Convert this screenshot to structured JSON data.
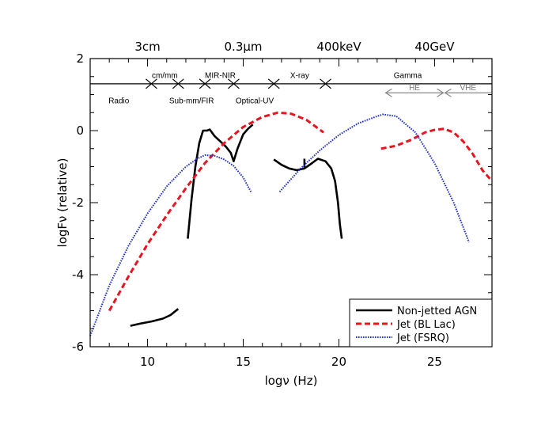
{
  "chart_data": {
    "type": "line",
    "xlabel": "logν (Hz)",
    "ylabel": "logFν (relative)",
    "xlim": [
      7,
      28
    ],
    "ylim": [
      -6,
      2
    ],
    "x_ticks": [
      10,
      15,
      20,
      25
    ],
    "y_ticks": [
      -6,
      -4,
      -2,
      0,
      2
    ],
    "top_axis_ticks": [
      {
        "value": 10,
        "label": "3cm"
      },
      {
        "value": 15,
        "label": "0.3μm"
      },
      {
        "value": 20,
        "label": "400keV"
      },
      {
        "value": 25,
        "label": "40GeV"
      }
    ],
    "band_line_y": 1.3,
    "band_boundaries": [
      10.2,
      11.6,
      13.0,
      14.5,
      16.6,
      19.3
    ],
    "band_labels": [
      {
        "text": "Radio",
        "x": 8.5,
        "y": 0.85
      },
      {
        "text": "cm/mm",
        "x": 10.9,
        "y": 1.55
      },
      {
        "text": "Sub-mm/FIR",
        "x": 12.3,
        "y": 0.85
      },
      {
        "text": "MIR-NIR",
        "x": 13.8,
        "y": 1.55
      },
      {
        "text": "Optical-UV",
        "x": 15.6,
        "y": 0.85
      },
      {
        "text": "X-ray",
        "x": 17.95,
        "y": 1.55
      },
      {
        "text": "Gamma",
        "x": 23.6,
        "y": 1.55
      }
    ],
    "sub_bands": [
      {
        "text": "HE",
        "from": 22.4,
        "to": 25.5,
        "y": 1.05
      },
      {
        "text": "VHE",
        "from": 25.5,
        "to": 28.0,
        "y": 1.05
      }
    ],
    "series": [
      {
        "name": "Non-jetted AGN",
        "color": "#000000",
        "style": "solid",
        "segments": [
          {
            "x": [
              9.1,
              9.6,
              10.2,
              10.8,
              11.2,
              11.6
            ],
            "y": [
              -5.42,
              -5.36,
              -5.3,
              -5.22,
              -5.12,
              -4.95
            ]
          },
          {
            "x": [
              12.1,
              12.3,
              12.5,
              12.7,
              12.9,
              13.1,
              13.25,
              13.5,
              13.8,
              14.1,
              14.35,
              14.5,
              14.7,
              15.0,
              15.25,
              15.5
            ],
            "y": [
              -3.0,
              -1.9,
              -1.0,
              -0.35,
              0.0,
              0.0,
              0.03,
              -0.15,
              -0.3,
              -0.45,
              -0.62,
              -0.85,
              -0.5,
              -0.1,
              0.05,
              0.17
            ]
          },
          {
            "x": [
              16.6,
              17.0,
              17.4,
              17.8,
              18.2,
              18.6,
              18.9,
              19.3,
              19.6,
              19.8,
              19.95,
              20.05,
              20.15
            ],
            "y": [
              -0.8,
              -0.95,
              -1.05,
              -1.1,
              -1.05,
              -0.9,
              -0.78,
              -0.85,
              -1.05,
              -1.4,
              -2.0,
              -2.6,
              -3.0
            ]
          },
          {
            "x": [
              18.2,
              18.2
            ],
            "y": [
              -0.78,
              -1.02
            ]
          }
        ]
      },
      {
        "name": "Jet (BL Lac)",
        "color": "#e8141e",
        "style": "dashed",
        "segments": [
          {
            "x": [
              8.0,
              9.0,
              10.0,
              11.0,
              12.0,
              13.0,
              14.0,
              15.0,
              16.0,
              16.8,
              17.5,
              18.3,
              19.2
            ],
            "y": [
              -5.0,
              -4.05,
              -3.15,
              -2.35,
              -1.6,
              -0.9,
              -0.35,
              0.1,
              0.38,
              0.5,
              0.47,
              0.3,
              -0.05
            ]
          },
          {
            "x": [
              22.2,
              23.0,
              23.8,
              24.5,
              25.0,
              25.5,
              26.0,
              26.5,
              27.0,
              27.5,
              28.0
            ],
            "y": [
              -0.5,
              -0.42,
              -0.25,
              -0.05,
              0.02,
              0.05,
              -0.05,
              -0.3,
              -0.65,
              -1.1,
              -1.4
            ]
          }
        ]
      },
      {
        "name": "Jet (FSRQ)",
        "color": "#2233cc",
        "style": "dotted",
        "segments": [
          {
            "x": [
              7.0,
              8.0,
              9.0,
              10.0,
              11.0,
              12.0,
              12.6,
              13.0,
              13.5,
              14.0,
              14.5,
              15.0,
              15.4
            ],
            "y": [
              -5.7,
              -4.3,
              -3.2,
              -2.3,
              -1.55,
              -1.0,
              -0.78,
              -0.68,
              -0.7,
              -0.8,
              -0.98,
              -1.3,
              -1.7
            ]
          },
          {
            "x": [
              16.9,
              18.0,
              19.0,
              20.0,
              21.0,
              22.0,
              22.3,
              23.0,
              24.0,
              25.0,
              26.0,
              26.8
            ],
            "y": [
              -1.7,
              -1.05,
              -0.55,
              -0.12,
              0.2,
              0.4,
              0.45,
              0.4,
              -0.05,
              -0.9,
              -2.0,
              -3.1
            ]
          }
        ]
      }
    ]
  }
}
